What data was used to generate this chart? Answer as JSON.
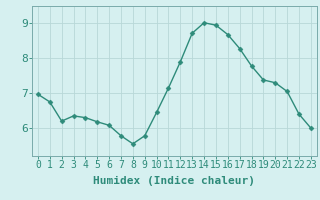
{
  "x": [
    0,
    1,
    2,
    3,
    4,
    5,
    6,
    7,
    8,
    9,
    10,
    11,
    12,
    13,
    14,
    15,
    16,
    17,
    18,
    19,
    20,
    21,
    22,
    23
  ],
  "y": [
    6.97,
    6.75,
    6.2,
    6.35,
    6.3,
    6.18,
    6.08,
    5.78,
    5.55,
    5.78,
    6.45,
    7.15,
    7.9,
    8.72,
    9.02,
    8.95,
    8.68,
    8.28,
    7.78,
    7.38,
    7.3,
    7.05,
    6.4,
    6.0
  ],
  "line_color": "#2e8b7a",
  "marker": "D",
  "markersize": 2.5,
  "linewidth": 1.0,
  "bg_color": "#d6f0f0",
  "grid_color": "#b8d8d8",
  "axis_color": "#7aaaaa",
  "xlabel": "Humidex (Indice chaleur)",
  "xlabel_fontsize": 8,
  "tick_fontsize": 7,
  "ytick_fontsize": 8,
  "yticks": [
    6,
    7,
    8,
    9
  ],
  "ylim": [
    5.2,
    9.5
  ],
  "xlim": [
    -0.5,
    23.5
  ],
  "xticks": [
    0,
    1,
    2,
    3,
    4,
    5,
    6,
    7,
    8,
    9,
    10,
    11,
    12,
    13,
    14,
    15,
    16,
    17,
    18,
    19,
    20,
    21,
    22,
    23
  ]
}
